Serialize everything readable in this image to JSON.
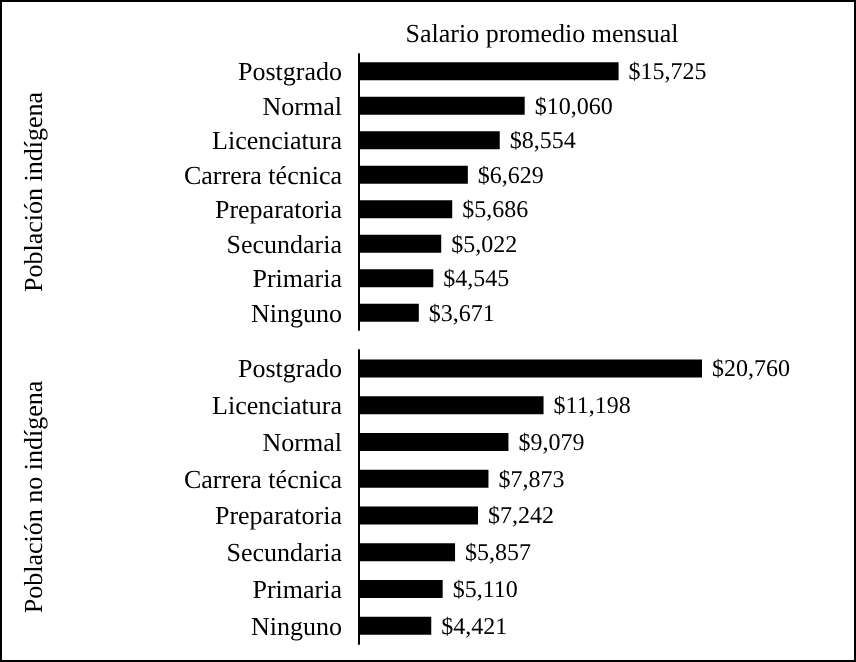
{
  "chart_data": [
    {
      "type": "bar",
      "orientation": "horizontal",
      "title": "Salario promedio mensual",
      "ylabel": "Población indígena",
      "color": "#000000",
      "categories": [
        "Postgrado",
        "Normal",
        "Licenciatura",
        "Carrera técnica",
        "Preparatoria",
        "Secundaria",
        "Primaria",
        "Ninguno"
      ],
      "values": [
        15725,
        10060,
        8554,
        6629,
        5686,
        5022,
        4545,
        3671
      ],
      "value_labels": [
        "$15,725",
        "$10,060",
        "$8,554",
        "$6,629",
        "$5,686",
        "$5,022",
        "$4,545",
        "$3,671"
      ]
    },
    {
      "type": "bar",
      "orientation": "horizontal",
      "ylabel": "Población no indígena",
      "color": "#000000",
      "categories": [
        "Postgrado",
        "Licenciatura",
        "Normal",
        "Carrera técnica",
        "Preparatoria",
        "Secundaria",
        "Primaria",
        "Ninguno"
      ],
      "values": [
        20760,
        11198,
        9079,
        7873,
        7242,
        5857,
        5110,
        4421
      ],
      "value_labels": [
        "$20,760",
        "$11,198",
        "$9,079",
        "$7,873",
        "$7,242",
        "$5,857",
        "$5,110",
        "$4,421"
      ]
    }
  ]
}
